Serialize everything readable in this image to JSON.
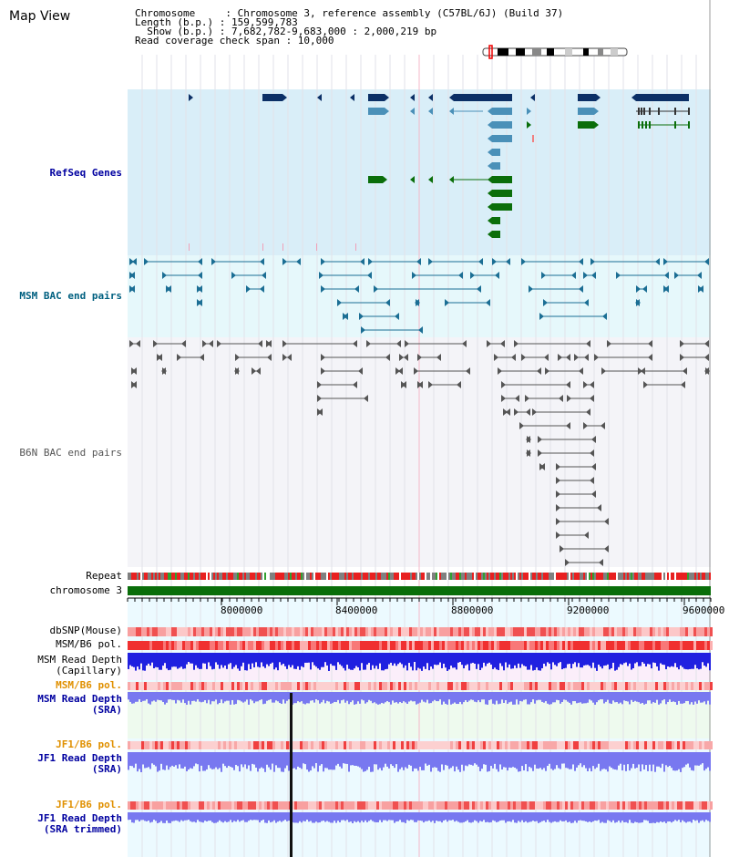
{
  "title": "Map View",
  "info": {
    "chromosome": "Chromosome     : Chromosome 3, reference assembly (C57BL/6J) (Build 37)",
    "length": "Length (b.p.) : 159,599,783",
    "show": "  Show (b.p.) : 7,682,782-9,683,000 : 2,000,219 bp",
    "coverage": "Read coverage check span : 10,000"
  },
  "tracks": {
    "refseq": "RefSeq Genes",
    "msm_bac": "MSM BAC end pairs",
    "b6n_bac": "B6N BAC end pairs",
    "repeat": "Repeat",
    "chromosome": "chromosome 3",
    "dbsnp": "dbSNP(Mouse)",
    "msm_b6_pol": "MSM/B6 pol.",
    "msm_depth_cap_1": "MSM Read Depth",
    "msm_depth_cap_2": "(Capillary)",
    "msm_b6_pol_sra": "MSM/B6 pol.",
    "msm_depth_sra_1": "MSM Read Depth",
    "msm_depth_sra_2": "(SRA)",
    "jf1_b6_pol": "JF1/B6 pol.",
    "jf1_depth_sra_1": "JF1 Read Depth",
    "jf1_depth_sra_2": "(SRA)",
    "jf1_b6_pol_trim": "JF1/B6 pol.",
    "jf1_depth_trim_1": "JF1 Read Depth",
    "jf1_depth_trim_2": "(SRA trimmed)"
  },
  "axis": {
    "ticks": [
      "8000000",
      "8400000",
      "8800000",
      "9200000",
      "9600000"
    ],
    "range": [
      7682782,
      9683000
    ]
  },
  "colors": {
    "refseq_bg": "#d9eef8",
    "msm_bg": "#e6f8fb",
    "b6n_bg": "#f4f4f8",
    "gene_dark": "#0b2f66",
    "gene_mid": "#4a90b8",
    "gene_green": "#0a6e0a",
    "msm_pair": "#1b6e94",
    "b6n_pair": "#555555",
    "label_blue": "#0000a0",
    "label_teal": "#006080",
    "label_orange": "#e09000",
    "label_gray": "#555555",
    "depth_blue": "#2020e0",
    "depth_light": "#7878f0",
    "chrom_green": "#0a6e0a"
  }
}
